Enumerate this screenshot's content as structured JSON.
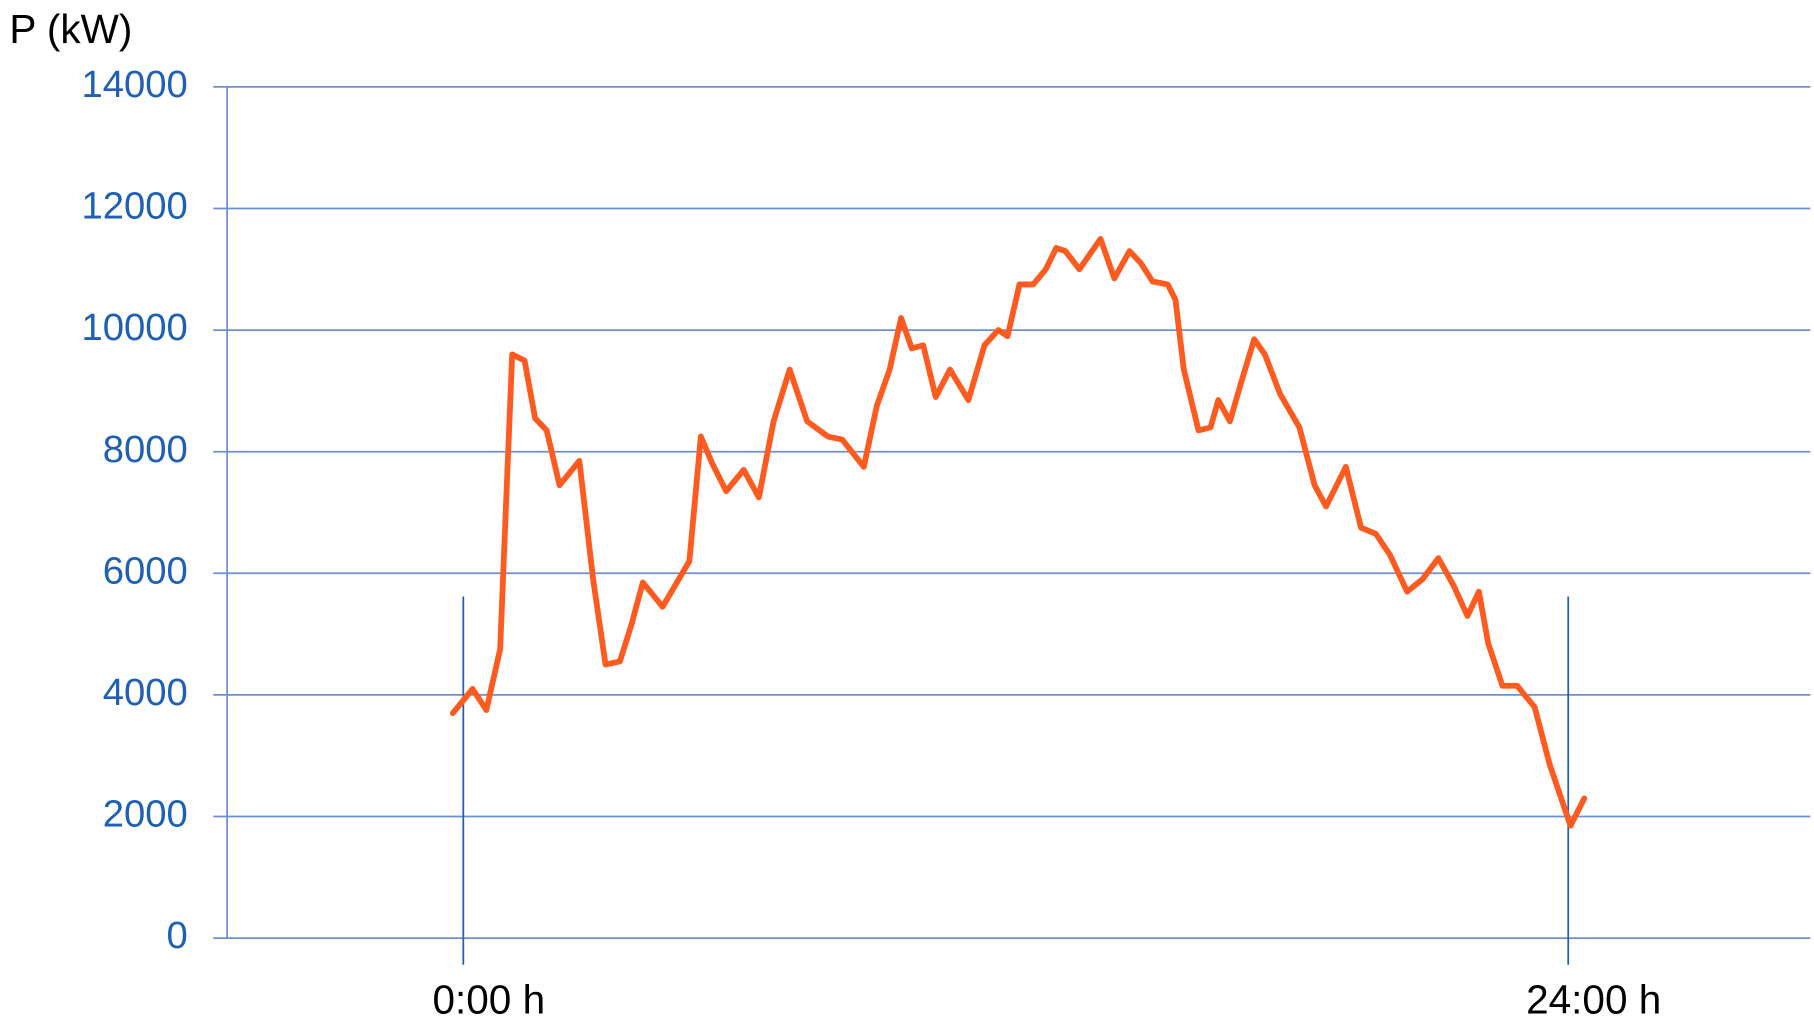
{
  "chart_data": {
    "type": "line",
    "y_label": "P (kW)",
    "x": [
      -0.23,
      0.2,
      0.5,
      0.8,
      1.06,
      1.33,
      1.56,
      1.81,
      2.09,
      2.52,
      2.82,
      3.09,
      3.4,
      3.65,
      3.9,
      4.33,
      4.6,
      4.91,
      5.16,
      5.41,
      5.71,
      6.09,
      6.42,
      6.74,
      7.09,
      7.47,
      7.92,
      8.23,
      8.7,
      8.98,
      9.26,
      9.51,
      9.74,
      9.99,
      10.26,
      10.57,
      10.97,
      11.32,
      11.62,
      11.82,
      12.08,
      12.38,
      12.65,
      12.88,
      13.08,
      13.38,
      13.84,
      14.14,
      14.47,
      14.72,
      14.97,
      15.3,
      15.47,
      15.65,
      15.97,
      16.23,
      16.4,
      16.65,
      16.9,
      17.18,
      17.41,
      17.74,
      18.16,
      18.49,
      18.74,
      19.17,
      19.5,
      19.82,
      20.13,
      20.5,
      20.83,
      21.18,
      21.51,
      21.81,
      22.06,
      22.26,
      22.57,
      22.89,
      23.27,
      23.6,
      24.05,
      24.35
    ],
    "series": [
      {
        "color": "#ff5a1f",
        "values": [
          3700,
          4100,
          3750,
          4750,
          9600,
          9500,
          8550,
          8350,
          7450,
          7850,
          5900,
          4500,
          4550,
          5150,
          5850,
          5450,
          5800,
          6200,
          8250,
          7800,
          7350,
          7700,
          7250,
          8500,
          9350,
          8500,
          8250,
          8200,
          7750,
          8750,
          9350,
          10200,
          9700,
          9750,
          8900,
          9350,
          8850,
          9750,
          10000,
          9900,
          10750,
          10750,
          11000,
          11350,
          11300,
          11000,
          11500,
          10850,
          11300,
          11100,
          10800,
          10750,
          10500,
          9350,
          8350,
          8400,
          8850,
          8500,
          9150,
          9850,
          9600,
          8950,
          8400,
          7450,
          7100,
          7750,
          6750,
          6650,
          6300,
          5700,
          5900,
          6250,
          5800,
          5300,
          5700,
          4850,
          4150,
          4150,
          3800,
          2850,
          1850,
          2300
        ]
      }
    ],
    "xlim": [
      -5.13,
      29.26
    ],
    "xticks": [
      {
        "value": 0,
        "label": "0:00 h"
      },
      {
        "value": 24,
        "label": "24:00 h"
      }
    ],
    "ylim": [
      0,
      14000
    ],
    "yticks": [
      0,
      2000,
      4000,
      6000,
      8000,
      10000,
      12000,
      14000
    ],
    "grid": true
  }
}
